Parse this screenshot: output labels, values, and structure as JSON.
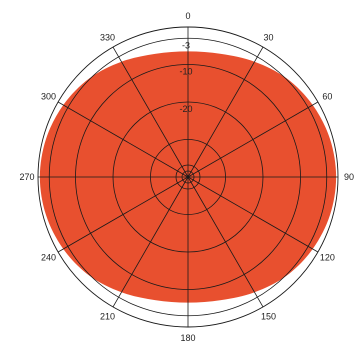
{
  "chart_data": {
    "type": "polar-area",
    "title": "",
    "angular_unit": "degrees",
    "zero_direction": "top",
    "rotation": "clockwise",
    "angle_ticks": [
      "0",
      "30",
      "60",
      "90",
      "120",
      "150",
      "180",
      "210",
      "240",
      "270",
      "300",
      "330"
    ],
    "radial_axis": {
      "unit": "dB",
      "range": [
        -40,
        0
      ],
      "ring_values": [
        -3,
        -10,
        -20,
        -30
      ],
      "ring_labels": [
        "-3",
        "-10",
        "-20"
      ]
    },
    "series": [
      {
        "fill_color": "#e8502f",
        "points": [
          {
            "angle": 0,
            "value": -6.5
          },
          {
            "angle": 15,
            "value": -6.0
          },
          {
            "angle": 30,
            "value": -4.5
          },
          {
            "angle": 45,
            "value": -2.8
          },
          {
            "angle": 60,
            "value": -1.6
          },
          {
            "angle": 75,
            "value": -0.8
          },
          {
            "angle": 90,
            "value": -0.5
          },
          {
            "angle": 105,
            "value": -0.8
          },
          {
            "angle": 120,
            "value": -1.6
          },
          {
            "angle": 135,
            "value": -2.8
          },
          {
            "angle": 150,
            "value": -4.5
          },
          {
            "angle": 165,
            "value": -6.0
          },
          {
            "angle": 180,
            "value": -6.5
          },
          {
            "angle": 195,
            "value": -6.0
          },
          {
            "angle": 210,
            "value": -4.5
          },
          {
            "angle": 225,
            "value": -2.8
          },
          {
            "angle": 240,
            "value": -1.6
          },
          {
            "angle": 255,
            "value": -0.8
          },
          {
            "angle": 270,
            "value": -0.5
          },
          {
            "angle": 285,
            "value": -0.8
          },
          {
            "angle": 300,
            "value": -1.6
          },
          {
            "angle": 315,
            "value": -2.8
          },
          {
            "angle": 330,
            "value": -4.5
          },
          {
            "angle": 345,
            "value": -6.0
          }
        ]
      }
    ],
    "colors": {
      "fill": "#e8502f",
      "grid": "#1a1a1a",
      "background": "#ffffff"
    }
  }
}
